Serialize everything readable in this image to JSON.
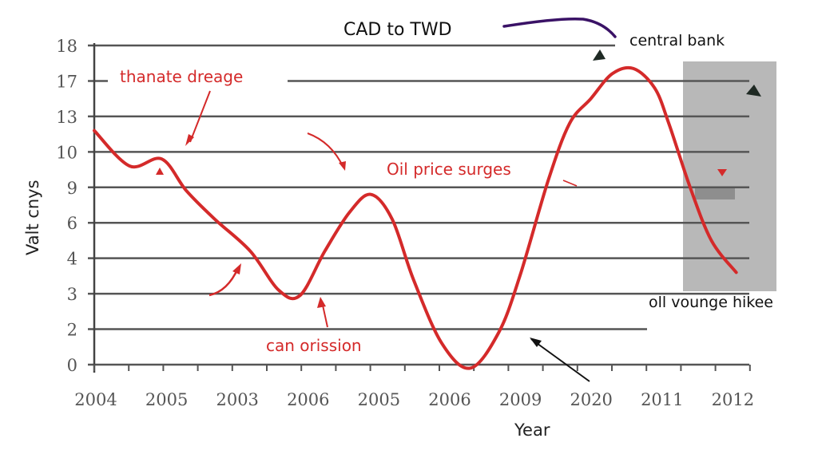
{
  "chart_data": {
    "type": "line",
    "title": "CAD to TWD",
    "xlabel": "Year",
    "ylabel": "Valt cnys",
    "grid": true,
    "legend": "none",
    "x_categories": [
      "2004",
      "2005",
      "2003",
      "2006",
      "2005",
      "2006",
      "2009",
      "2020",
      "2011",
      "2012"
    ],
    "y_tick_labels": [
      "0",
      "2",
      "3",
      "4",
      "6",
      "9",
      "10",
      "13",
      "17",
      "18"
    ],
    "ylim_index": [
      0,
      9
    ],
    "series": [
      {
        "name": "CAD to TWD",
        "color": "#d42a2a",
        "x_index": [
          0,
          0.5,
          0.95,
          1.3,
          1.7,
          2.2,
          2.6,
          2.9,
          3.25,
          3.6,
          3.9,
          4.2,
          4.5,
          4.9,
          5.3,
          5.7,
          6.0,
          6.4,
          6.7,
          7.0,
          7.3,
          7.6,
          7.9,
          8.1,
          8.4,
          8.7,
          9.05
        ],
        "y_index": [
          6.6,
          5.6,
          5.8,
          4.9,
          4.1,
          3.2,
          2.1,
          1.95,
          3.2,
          4.3,
          4.8,
          4.1,
          2.4,
          0.6,
          -0.1,
          0.9,
          2.5,
          5.2,
          6.8,
          7.5,
          8.2,
          8.35,
          7.8,
          6.8,
          5.0,
          3.5,
          2.6
        ]
      }
    ],
    "annotations": [
      {
        "text": "thanate dreage",
        "color": "#d42a2a"
      },
      {
        "text": "Oil price surges",
        "color": "#d42a2a"
      },
      {
        "text": "can orission",
        "color": "#d42a2a"
      },
      {
        "text": "central bank",
        "color": "#111111"
      },
      {
        "text": "oll vounge hikee",
        "color": "#111111"
      }
    ],
    "shaded_region": {
      "x_index_start": 8.3,
      "x_index_end": 9.5,
      "color": "#b8b8b8"
    }
  }
}
